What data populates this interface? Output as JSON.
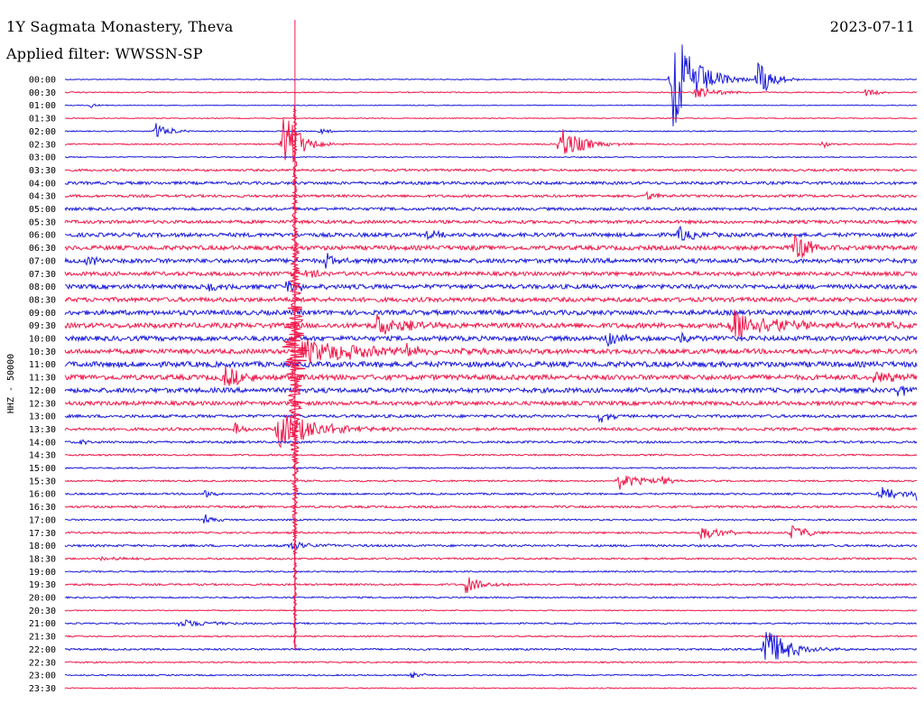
{
  "header": {
    "station": "1Y Sagmata Monastery, Theva",
    "filter": "Applied filter: WWSSN-SP",
    "date": "2023-07-11"
  },
  "colors": {
    "even_row": "#1a1adc",
    "odd_row": "#f0194b"
  },
  "chart_data": {
    "type": "line",
    "ylabel": "HHZ - 50000",
    "row_labels": [
      "00:00",
      "00:30",
      "01:00",
      "01:30",
      "02:00",
      "02:30",
      "03:00",
      "03:30",
      "04:00",
      "04:30",
      "05:00",
      "05:30",
      "06:00",
      "06:30",
      "07:00",
      "07:30",
      "08:00",
      "08:30",
      "09:00",
      "09:30",
      "10:00",
      "10:30",
      "11:00",
      "11:30",
      "12:00",
      "12:30",
      "13:00",
      "13:30",
      "14:00",
      "14:30",
      "15:00",
      "15:30",
      "16:00",
      "16:30",
      "17:00",
      "17:30",
      "18:00",
      "18:30",
      "19:00",
      "19:30",
      "20:00",
      "20:30",
      "21:00",
      "21:30",
      "22:00",
      "22:30",
      "23:00",
      "23:30"
    ],
    "x_minutes_per_row": 30,
    "noise_level": [
      0.5,
      0.6,
      0.4,
      0.5,
      0.6,
      0.7,
      0.6,
      1.2,
      1.6,
      1.4,
      1.6,
      1.8,
      2.2,
      2.4,
      2.4,
      2.2,
      2.4,
      2.4,
      2.6,
      2.8,
      2.6,
      2.6,
      3.0,
      2.8,
      2.6,
      2.2,
      1.6,
      1.6,
      1.2,
      0.9,
      0.8,
      0.9,
      1.0,
      1.2,
      0.9,
      1.0,
      1.2,
      1.0,
      0.8,
      1.0,
      0.8,
      0.6,
      0.8,
      0.7,
      1.0,
      0.8,
      0.7,
      0.6
    ],
    "events": [
      {
        "row": 0,
        "minute": 21.4,
        "amp": 60,
        "dur": 1.2
      },
      {
        "row": 0,
        "minute": 24.4,
        "amp": 22,
        "dur": 0.8
      },
      {
        "row": 1,
        "minute": 22.2,
        "amp": 7,
        "dur": 1.2
      },
      {
        "row": 1,
        "minute": 28.2,
        "amp": 4,
        "dur": 0.8
      },
      {
        "row": 2,
        "minute": 0.9,
        "amp": 3,
        "dur": 0.4
      },
      {
        "row": 4,
        "minute": 3.2,
        "amp": 9,
        "dur": 0.8
      },
      {
        "row": 4,
        "minute": 9.0,
        "amp": 4,
        "dur": 0.5
      },
      {
        "row": 5,
        "minute": 7.7,
        "amp": 40,
        "dur": 0.8
      },
      {
        "row": 5,
        "minute": 17.4,
        "amp": 20,
        "dur": 1.2
      },
      {
        "row": 5,
        "minute": 26.6,
        "amp": 5,
        "dur": 0.6
      },
      {
        "row": 9,
        "minute": 20.5,
        "amp": 5,
        "dur": 0.6
      },
      {
        "row": 12,
        "minute": 12.7,
        "amp": 6,
        "dur": 0.6
      },
      {
        "row": 12,
        "minute": 21.6,
        "amp": 8,
        "dur": 1.0
      },
      {
        "row": 13,
        "minute": 25.7,
        "amp": 16,
        "dur": 1.0
      },
      {
        "row": 14,
        "minute": 0.8,
        "amp": 8,
        "dur": 0.6
      },
      {
        "row": 14,
        "minute": 9.2,
        "amp": 10,
        "dur": 0.5
      },
      {
        "row": 15,
        "minute": 8.5,
        "amp": 6,
        "dur": 0.8
      },
      {
        "row": 16,
        "minute": 5.1,
        "amp": 6,
        "dur": 0.6
      },
      {
        "row": 16,
        "minute": 7.8,
        "amp": 8,
        "dur": 1.0
      },
      {
        "row": 19,
        "minute": 11.0,
        "amp": 12,
        "dur": 1.5
      },
      {
        "row": 19,
        "minute": 23.5,
        "amp": 20,
        "dur": 2.4
      },
      {
        "row": 19,
        "minute": 29.0,
        "amp": 6,
        "dur": 0.5
      },
      {
        "row": 20,
        "minute": 19.1,
        "amp": 10,
        "dur": 0.8
      },
      {
        "row": 20,
        "minute": 21.7,
        "amp": 6,
        "dur": 0.6
      },
      {
        "row": 21,
        "minute": 8.3,
        "amp": 14,
        "dur": 4.0
      },
      {
        "row": 21,
        "minute": 12.0,
        "amp": 8,
        "dur": 1.0
      },
      {
        "row": 23,
        "minute": 5.6,
        "amp": 12,
        "dur": 1.2
      },
      {
        "row": 23,
        "minute": 28.5,
        "amp": 10,
        "dur": 1.0
      },
      {
        "row": 24,
        "minute": 29.3,
        "amp": 8,
        "dur": 0.8
      },
      {
        "row": 26,
        "minute": 18.8,
        "amp": 7,
        "dur": 0.8
      },
      {
        "row": 27,
        "minute": 7.5,
        "amp": 22,
        "dur": 2.0
      },
      {
        "row": 27,
        "minute": 6.0,
        "amp": 8,
        "dur": 0.4
      },
      {
        "row": 28,
        "minute": 0.6,
        "amp": 3,
        "dur": 0.4
      },
      {
        "row": 31,
        "minute": 19.5,
        "amp": 10,
        "dur": 1.2
      },
      {
        "row": 31,
        "minute": 21.0,
        "amp": 8,
        "dur": 0.4
      },
      {
        "row": 32,
        "minute": 4.9,
        "amp": 5,
        "dur": 0.5
      },
      {
        "row": 32,
        "minute": 28.7,
        "amp": 10,
        "dur": 1.0
      },
      {
        "row": 32,
        "minute": 30.0,
        "amp": 8,
        "dur": 0.6
      },
      {
        "row": 34,
        "minute": 4.9,
        "amp": 8,
        "dur": 0.5
      },
      {
        "row": 35,
        "minute": 22.4,
        "amp": 8,
        "dur": 1.2
      },
      {
        "row": 35,
        "minute": 25.6,
        "amp": 8,
        "dur": 1.0
      },
      {
        "row": 36,
        "minute": 7.9,
        "amp": 5,
        "dur": 1.4
      },
      {
        "row": 37,
        "minute": 1.3,
        "amp": 3,
        "dur": 1.2
      },
      {
        "row": 39,
        "minute": 14.1,
        "amp": 10,
        "dur": 1.0
      },
      {
        "row": 42,
        "minute": 4.0,
        "amp": 5,
        "dur": 2.0
      },
      {
        "row": 44,
        "minute": 24.6,
        "amp": 28,
        "dur": 1.2
      },
      {
        "row": 46,
        "minute": 12.2,
        "amp": 4,
        "dur": 0.8
      }
    ],
    "large_event": {
      "start_row": 4,
      "end_row": 44,
      "minute": 8.1,
      "peak_row": 21,
      "note": "long-period spike across rows"
    }
  }
}
